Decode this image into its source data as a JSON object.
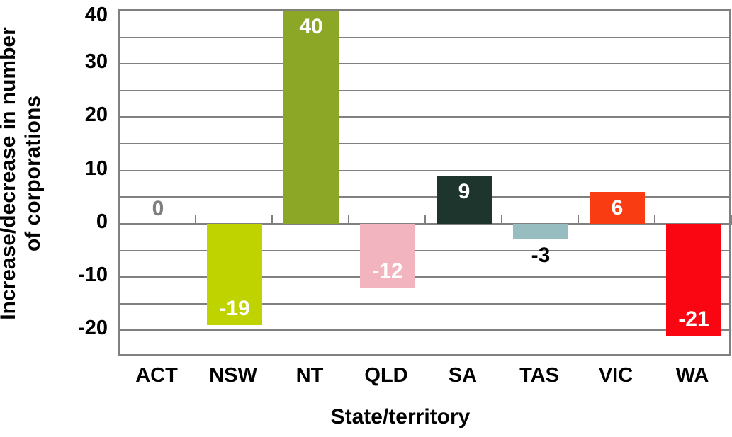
{
  "chart_data": {
    "type": "bar",
    "title": "",
    "xlabel": "State/territory",
    "ylabel": "Increase/decrease in number\nof corporations",
    "categories": [
      "ACT",
      "NSW",
      "NT",
      "QLD",
      "SA",
      "TAS",
      "VIC",
      "WA"
    ],
    "values": [
      0,
      -19,
      40,
      -12,
      9,
      -3,
      6,
      -21
    ],
    "data_labels": [
      "0",
      "-19",
      "40",
      "-12",
      "9",
      "-3",
      "6",
      "-21"
    ],
    "data_label_colors": [
      "#7F7F7F",
      "#FFFFFF",
      "#FFFFFF",
      "#FFFFFF",
      "#FFFFFF",
      "#000000",
      "#FFFFFF",
      "#FFFFFF"
    ],
    "bar_colors": [
      null,
      "#BFD300",
      "#8BA725",
      "#F2B4BE",
      "#1D352C",
      "#98BDC1",
      "#FA3C13",
      "#FA0612"
    ],
    "ylim": [
      -25,
      40
    ],
    "ytick_values": [
      40,
      30,
      20,
      10,
      0,
      -10,
      -20
    ],
    "ytick_labels": [
      "40",
      "30",
      "20",
      "10",
      "0",
      "-10",
      "-20"
    ],
    "grid_step": 5,
    "grid": true,
    "legend": "none",
    "colors": {
      "grid": "#808080",
      "axis_text": "#000000",
      "background": "#FFFFFF"
    }
  }
}
